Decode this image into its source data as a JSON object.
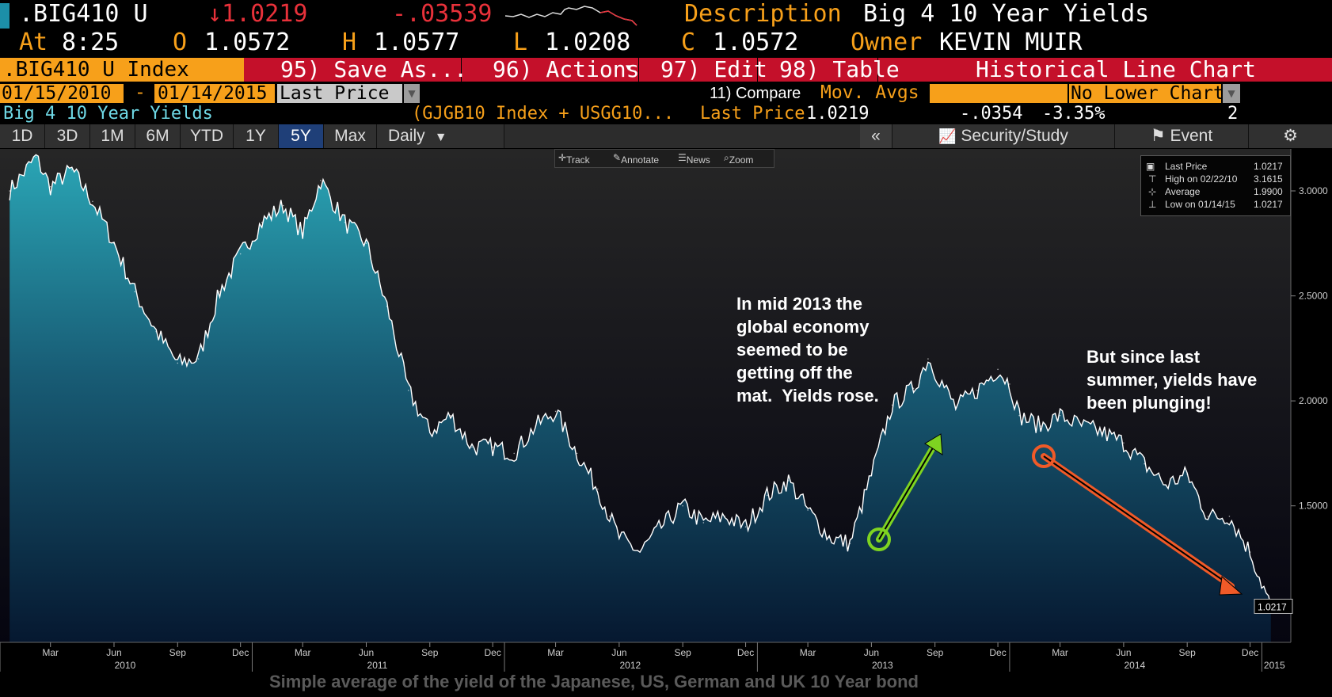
{
  "header": {
    "ticker": ".BIG410 U",
    "last": "↓1.0219",
    "change": "-.03539",
    "desc_label": "Description",
    "desc_value": "Big 4 10 Year Yields",
    "at_label": "At",
    "time": "8:25",
    "o_label": "O",
    "open": "1.0572",
    "h_label": "H",
    "high": "1.0577",
    "l_label": "L",
    "low": "1.0208",
    "c_label": "C",
    "close": "1.0572",
    "owner_label": "Owner",
    "owner": "KEVIN MUIR"
  },
  "toolbar": {
    "index_name": ".BIG410 U Index",
    "save": "95) Save As...",
    "actions": "96) Actions",
    "edit": "97) Edit",
    "table": "98) Table",
    "chart_type": "Historical Line Chart"
  },
  "range": {
    "start": "01/15/2010",
    "dash": "-",
    "end": "01/14/2015",
    "field": "Last Price",
    "compare": "11) Compare",
    "mov_avgs": "Mov. Avgs",
    "lower_chart": "No Lower Chart"
  },
  "security_row": {
    "name": "Big 4 10 Year Yields",
    "formula": "(GJGB10 Index + USGG10...",
    "label": "Last Price",
    "value": "1.0219",
    "change": "-.0354",
    "pct": "-3.35%",
    "count": "2"
  },
  "period_tabs": [
    "1D",
    "3D",
    "1M",
    "6M",
    "YTD",
    "1Y",
    "5Y",
    "Max"
  ],
  "selected_tab": "5Y",
  "frequency": "Daily",
  "right_tabs": {
    "collapse": "«",
    "security_study": "Security/Study",
    "event": "Event"
  },
  "mini_toolbar": {
    "track": "Track",
    "annotate": "Annotate",
    "news": "News",
    "zoom": "Zoom"
  },
  "legend": {
    "last_label": "Last Price",
    "last_value": "1.0217",
    "high_label": "High on 02/22/10",
    "high_value": "3.1615",
    "avg_label": "Average",
    "avg_value": "1.9900",
    "low_label": "Low on 01/14/15",
    "low_value": "1.0217"
  },
  "annotations": {
    "mid2013": "In mid 2013 the\nglobal economy\nseemed to be\ngetting off the\nmat.  Yields rose.",
    "since_summer": "But since last\nsummer, yields have\nbeen plunging!"
  },
  "caption": "Simple average of the yield of the Japanese, US, German and UK 10 Year bond",
  "colors": {
    "orange": "#f7a01a",
    "red_bar": "#c4102a",
    "up_arrow": "#7ed321",
    "down_arrow": "#f05a28"
  },
  "chart_data": {
    "type": "area",
    "title": "",
    "xlabel": "",
    "ylabel": "",
    "ylim": [
      0.85,
      3.2
    ],
    "y_ticks": [
      "3.0000",
      "2.5000",
      "2.0000",
      "1.5000"
    ],
    "last_value_label": "1.0217",
    "x_month_ticks": [
      "Mar",
      "Jun",
      "Sep",
      "Dec",
      "Mar",
      "Jun",
      "Sep",
      "Dec",
      "Mar",
      "Jun",
      "Sep",
      "Dec",
      "Mar",
      "Jun",
      "Sep",
      "Dec",
      "Mar",
      "Jun",
      "Sep",
      "Dec"
    ],
    "x_year_ticks": [
      "2010",
      "2011",
      "2012",
      "2013",
      "2014",
      "2015"
    ],
    "series": [
      {
        "values_x": [
          "2010-01-15",
          "2010-02-22",
          "2010-03-15",
          "2010-04-15",
          "2010-05-15",
          "2010-06-15",
          "2010-07-15",
          "2010-08-15",
          "2010-09-15",
          "2010-10-15",
          "2010-11-15",
          "2010-12-15",
          "2011-01-15",
          "2011-02-15",
          "2011-03-15",
          "2011-04-10",
          "2011-05-15",
          "2011-06-15",
          "2011-07-15",
          "2011-08-15",
          "2011-09-15",
          "2011-10-15",
          "2011-11-15",
          "2011-12-15",
          "2012-01-15",
          "2012-02-15",
          "2012-03-15",
          "2012-04-15",
          "2012-05-15",
          "2012-06-01",
          "2012-06-15",
          "2012-07-15",
          "2012-08-15",
          "2012-09-15",
          "2012-10-15",
          "2012-11-15",
          "2012-12-15",
          "2013-01-15",
          "2013-02-15",
          "2013-03-15",
          "2013-04-15",
          "2013-05-15",
          "2013-06-15",
          "2013-07-15",
          "2013-08-15",
          "2013-09-05",
          "2013-10-15",
          "2013-11-15",
          "2013-12-15",
          "2014-01-01",
          "2014-01-15",
          "2014-02-15",
          "2014-03-15",
          "2014-04-15",
          "2014-05-15",
          "2014-06-15",
          "2014-07-15",
          "2014-08-15",
          "2014-09-15",
          "2014-10-15",
          "2014-11-15",
          "2014-12-15",
          "2015-01-14"
        ],
        "values_y": [
          3.0,
          3.16,
          3.02,
          3.1,
          2.95,
          2.75,
          2.52,
          2.33,
          2.18,
          2.2,
          2.52,
          2.7,
          2.85,
          2.93,
          2.8,
          3.05,
          2.85,
          2.75,
          2.45,
          2.05,
          1.85,
          1.93,
          1.78,
          1.78,
          1.75,
          1.88,
          1.95,
          1.75,
          1.58,
          1.45,
          1.35,
          1.28,
          1.4,
          1.5,
          1.42,
          1.45,
          1.4,
          1.55,
          1.62,
          1.48,
          1.35,
          1.32,
          1.65,
          1.98,
          2.06,
          2.2,
          1.97,
          2.05,
          2.15,
          2.08,
          1.93,
          1.88,
          1.93,
          1.88,
          1.85,
          1.8,
          1.7,
          1.6,
          1.65,
          1.45,
          1.45,
          1.28,
          1.02
        ]
      }
    ]
  }
}
